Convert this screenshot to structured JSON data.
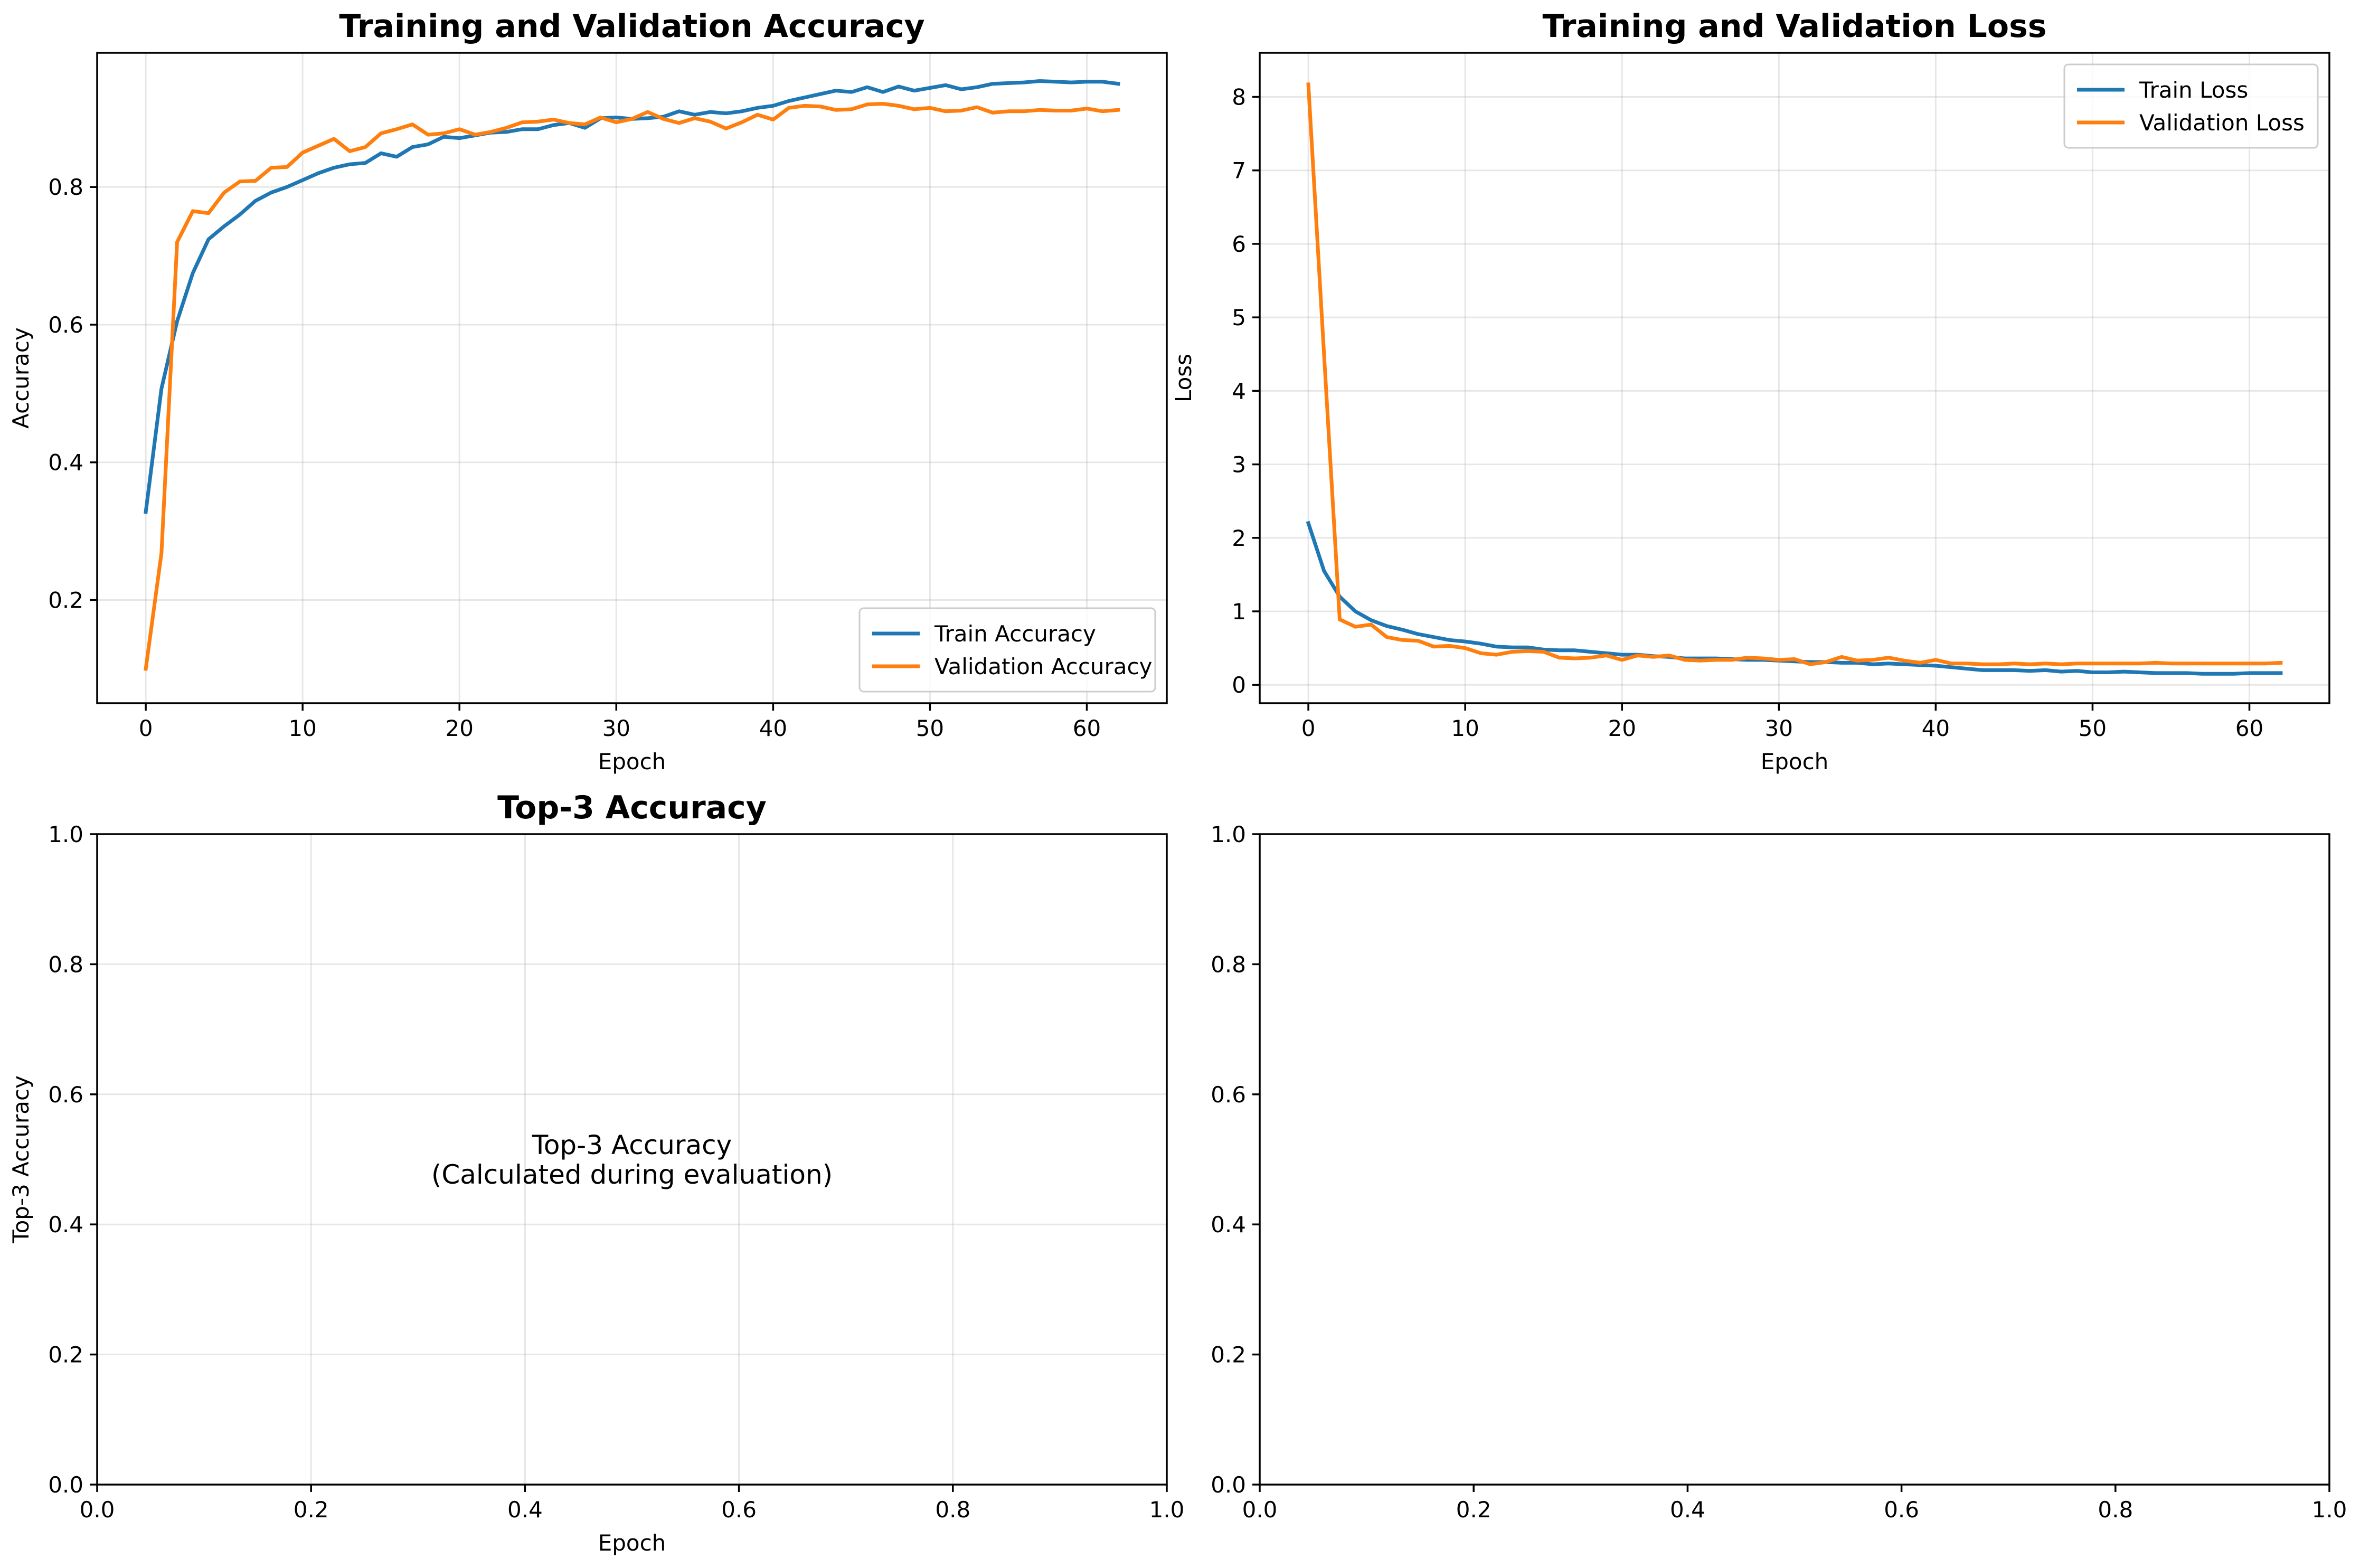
{
  "colors": {
    "train": "#1f77b4",
    "validation": "#ff7f0e"
  },
  "chart_data": [
    {
      "type": "line",
      "title": "Training and Validation Accuracy",
      "xlabel": "Epoch",
      "ylabel": "Accuracy",
      "xlim": [
        -3.1,
        65.1
      ],
      "ylim": [
        0.05,
        0.995
      ],
      "xticks": [
        0,
        10,
        20,
        30,
        40,
        50,
        60
      ],
      "yticks": [
        0.2,
        0.4,
        0.6,
        0.8
      ],
      "grid": true,
      "legend": "lower right",
      "x_start": 0,
      "series": [
        {
          "name": "Train Accuracy",
          "color": "#1f77b4",
          "values": [
            0.328,
            0.507,
            0.605,
            0.675,
            0.724,
            0.743,
            0.76,
            0.78,
            0.792,
            0.8,
            0.81,
            0.82,
            0.828,
            0.833,
            0.835,
            0.849,
            0.844,
            0.858,
            0.862,
            0.873,
            0.871,
            0.875,
            0.879,
            0.88,
            0.884,
            0.884,
            0.89,
            0.893,
            0.886,
            0.9,
            0.901,
            0.899,
            0.9,
            0.902,
            0.91,
            0.905,
            0.909,
            0.907,
            0.91,
            0.915,
            0.918,
            0.925,
            0.93,
            0.935,
            0.94,
            0.938,
            0.945,
            0.938,
            0.946,
            0.94,
            0.944,
            0.948,
            0.942,
            0.945,
            0.95,
            0.951,
            0.952,
            0.954,
            0.953,
            0.952,
            0.953,
            0.953,
            0.95
          ]
        },
        {
          "name": "Validation Accuracy",
          "color": "#ff7f0e",
          "values": [
            0.1,
            0.268,
            0.72,
            0.765,
            0.762,
            0.792,
            0.808,
            0.809,
            0.828,
            0.829,
            0.85,
            0.86,
            0.87,
            0.852,
            0.858,
            0.878,
            0.884,
            0.891,
            0.876,
            0.878,
            0.884,
            0.876,
            0.88,
            0.886,
            0.894,
            0.895,
            0.898,
            0.893,
            0.891,
            0.901,
            0.894,
            0.899,
            0.909,
            0.899,
            0.893,
            0.9,
            0.895,
            0.885,
            0.894,
            0.905,
            0.898,
            0.915,
            0.918,
            0.917,
            0.912,
            0.913,
            0.92,
            0.921,
            0.918,
            0.913,
            0.915,
            0.91,
            0.911,
            0.916,
            0.908,
            0.91,
            0.91,
            0.912,
            0.911,
            0.911,
            0.914,
            0.91,
            0.912
          ]
        }
      ]
    },
    {
      "type": "line",
      "title": "Training and Validation Loss",
      "xlabel": "Epoch",
      "ylabel": "Loss",
      "xlim": [
        -3.1,
        65.1
      ],
      "ylim": [
        -0.25,
        8.6
      ],
      "xticks": [
        0,
        10,
        20,
        30,
        40,
        50,
        60
      ],
      "yticks": [
        0,
        1,
        2,
        3,
        4,
        5,
        6,
        7,
        8
      ],
      "grid": true,
      "legend": "upper right",
      "x_start": 0,
      "series": [
        {
          "name": "Train Loss",
          "color": "#1f77b4",
          "values": [
            2.2,
            1.55,
            1.2,
            1.0,
            0.88,
            0.8,
            0.75,
            0.69,
            0.65,
            0.61,
            0.59,
            0.56,
            0.52,
            0.51,
            0.51,
            0.48,
            0.47,
            0.47,
            0.45,
            0.43,
            0.41,
            0.41,
            0.39,
            0.38,
            0.36,
            0.36,
            0.36,
            0.35,
            0.34,
            0.34,
            0.33,
            0.32,
            0.31,
            0.31,
            0.3,
            0.3,
            0.28,
            0.29,
            0.28,
            0.27,
            0.26,
            0.24,
            0.22,
            0.2,
            0.2,
            0.2,
            0.19,
            0.2,
            0.18,
            0.19,
            0.17,
            0.17,
            0.18,
            0.17,
            0.16,
            0.16,
            0.16,
            0.15,
            0.15,
            0.15,
            0.16,
            0.16,
            0.16
          ]
        },
        {
          "name": "Validation Loss",
          "color": "#ff7f0e",
          "values": [
            8.17,
            4.5,
            0.89,
            0.79,
            0.82,
            0.65,
            0.61,
            0.6,
            0.52,
            0.53,
            0.5,
            0.43,
            0.41,
            0.45,
            0.46,
            0.45,
            0.37,
            0.36,
            0.37,
            0.4,
            0.34,
            0.4,
            0.38,
            0.4,
            0.34,
            0.33,
            0.34,
            0.34,
            0.37,
            0.36,
            0.34,
            0.35,
            0.28,
            0.31,
            0.38,
            0.33,
            0.34,
            0.37,
            0.33,
            0.3,
            0.34,
            0.29,
            0.29,
            0.28,
            0.28,
            0.29,
            0.28,
            0.29,
            0.28,
            0.29,
            0.29,
            0.29,
            0.29,
            0.29,
            0.3,
            0.29,
            0.29,
            0.29,
            0.29,
            0.29,
            0.29,
            0.29,
            0.3
          ]
        }
      ]
    },
    {
      "type": "line",
      "title": "Top-3 Accuracy",
      "xlabel": "Epoch",
      "ylabel": "Top-3 Accuracy",
      "xlim": [
        0,
        1
      ],
      "ylim": [
        0,
        1
      ],
      "xticks": [
        0.0,
        0.2,
        0.4,
        0.6,
        0.8,
        1.0
      ],
      "yticks": [
        0.0,
        0.2,
        0.4,
        0.6,
        0.8,
        1.0
      ],
      "grid": true,
      "annotation": [
        "Top-3 Accuracy",
        "(Calculated during evaluation)"
      ],
      "series": []
    },
    {
      "type": "line",
      "title": "",
      "xlabel": "",
      "ylabel": "",
      "xlim": [
        0,
        1
      ],
      "ylim": [
        0,
        1
      ],
      "xticks": [
        0.0,
        0.2,
        0.4,
        0.6,
        0.8,
        1.0
      ],
      "yticks": [
        0.0,
        0.2,
        0.4,
        0.6,
        0.8,
        1.0
      ],
      "grid": false,
      "series": []
    }
  ]
}
